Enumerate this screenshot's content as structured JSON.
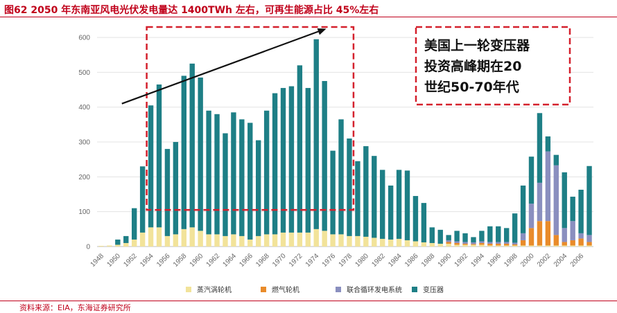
{
  "header": {
    "figure_title": "图62  2050 年东南亚风电光伏发电量达 1400TWh 左右，可再生能源占比 45%左右"
  },
  "footer": {
    "source": "资料来源：EIA，东海证券研究所"
  },
  "colors": {
    "title_red": "#c0001a",
    "steam": "#f2e39a",
    "gas": "#e98b2a",
    "combined": "#8a8fbf",
    "transformer": "#1e7f86",
    "highlight": "#d4202c",
    "grid": "#e3e3e3"
  },
  "chart_data": {
    "type": "bar",
    "stacked": true,
    "title": "",
    "xlabel": "",
    "ylabel": "",
    "ylim": [
      0,
      650
    ],
    "yticks": [
      0,
      100,
      200,
      300,
      400,
      500,
      600
    ],
    "grid": true,
    "legend_position": "bottom",
    "x_tick_labels": [
      "1948",
      "1950",
      "1952",
      "1954",
      "1956",
      "1958",
      "1960",
      "1962",
      "1964",
      "1966",
      "1968",
      "1970",
      "1972",
      "1974",
      "1976",
      "1978",
      "1980",
      "1982",
      "1984",
      "1986",
      "1988",
      "1990",
      "1992",
      "1994",
      "1996",
      "1998",
      "2000",
      "2002",
      "2004",
      "2006"
    ],
    "categories": [
      1948,
      1949,
      1950,
      1951,
      1952,
      1953,
      1954,
      1955,
      1956,
      1957,
      1958,
      1959,
      1960,
      1961,
      1962,
      1963,
      1964,
      1965,
      1966,
      1967,
      1968,
      1969,
      1970,
      1971,
      1972,
      1973,
      1974,
      1975,
      1976,
      1977,
      1978,
      1979,
      1980,
      1981,
      1982,
      1983,
      1984,
      1985,
      1986,
      1987,
      1988,
      1989,
      1990,
      1991,
      1992,
      1993,
      1994,
      1995,
      1996,
      1997,
      1998,
      1999,
      2000,
      2001,
      2002,
      2003,
      2004,
      2005,
      2006,
      2007
    ],
    "series": [
      {
        "name": "蒸汽涡轮机",
        "color_key": "steam",
        "values": [
          2,
          3,
          5,
          10,
          20,
          40,
          55,
          55,
          30,
          35,
          50,
          55,
          45,
          35,
          35,
          30,
          35,
          30,
          20,
          30,
          35,
          35,
          40,
          40,
          40,
          40,
          50,
          45,
          35,
          35,
          30,
          30,
          28,
          25,
          22,
          20,
          22,
          18,
          15,
          12,
          10,
          8,
          8,
          5,
          5,
          5,
          5,
          3,
          3,
          3,
          3,
          3,
          3,
          3,
          3,
          3,
          3,
          3,
          3,
          3
        ]
      },
      {
        "name": "燃气轮机",
        "color_key": "gas",
        "values": [
          0,
          0,
          0,
          0,
          0,
          0,
          0,
          0,
          0,
          0,
          0,
          0,
          0,
          0,
          0,
          0,
          0,
          0,
          0,
          0,
          0,
          0,
          0,
          0,
          0,
          0,
          0,
          0,
          0,
          0,
          0,
          0,
          0,
          0,
          0,
          0,
          0,
          0,
          0,
          0,
          0,
          0,
          5,
          5,
          3,
          2,
          5,
          5,
          5,
          5,
          3,
          15,
          50,
          70,
          70,
          30,
          10,
          15,
          20,
          10
        ]
      },
      {
        "name": "联合循环发电系统",
        "color_key": "combined",
        "values": [
          0,
          0,
          0,
          0,
          0,
          0,
          0,
          0,
          0,
          0,
          0,
          0,
          0,
          0,
          0,
          0,
          0,
          0,
          0,
          0,
          0,
          0,
          0,
          0,
          0,
          0,
          0,
          0,
          0,
          0,
          0,
          0,
          0,
          0,
          0,
          0,
          0,
          0,
          0,
          0,
          0,
          0,
          5,
          5,
          5,
          5,
          5,
          5,
          5,
          5,
          5,
          20,
          70,
          110,
          200,
          200,
          40,
          55,
          15,
          20
        ]
      },
      {
        "name": "变压器",
        "color_key": "transformer",
        "values": [
          0,
          0,
          15,
          20,
          90,
          190,
          350,
          410,
          250,
          265,
          440,
          470,
          440,
          355,
          345,
          295,
          350,
          335,
          335,
          275,
          355,
          405,
          415,
          420,
          480,
          415,
          545,
          430,
          240,
          330,
          280,
          215,
          260,
          235,
          198,
          155,
          198,
          200,
          130,
          113,
          45,
          40,
          15,
          30,
          25,
          15,
          30,
          45,
          45,
          40,
          84,
          137,
          135,
          200,
          43,
          30,
          160,
          70,
          125,
          198
        ]
      }
    ],
    "annotations": [
      {
        "type": "box",
        "year_start": 1953.5,
        "year_end": 1978.5,
        "y_bottom": 105,
        "y_top": 630
      },
      {
        "type": "box",
        "text_lines": [
          "美国上一轮变压器",
          "投资高峰期在20",
          "世纪50-70年代"
        ]
      },
      {
        "type": "arrow",
        "from": {
          "year": 1950.5,
          "value": 410
        },
        "to": {
          "year": 1975.2,
          "value": 625
        }
      }
    ]
  }
}
